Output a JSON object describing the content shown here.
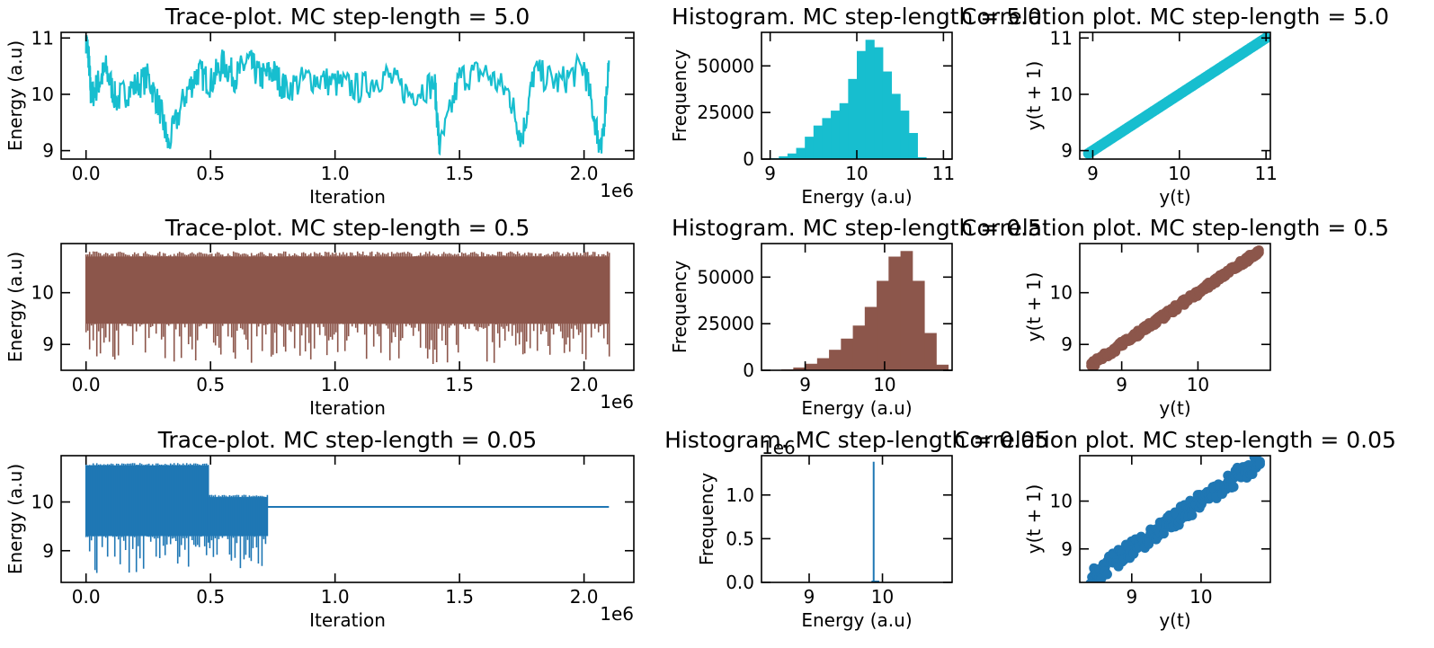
{
  "colors": {
    "row1": "#17becf",
    "row2": "#8c564b",
    "row3": "#1f77b4"
  },
  "chart_data": [
    {
      "type": "line",
      "title": "Trace-plot. MC step-length = 5.0",
      "xlabel": "Iteration",
      "ylabel": "Energy (a.u)",
      "x_offset_label": "1e6",
      "xlim": [
        -0.1,
        2.2
      ],
      "ylim": [
        8.85,
        11.1
      ],
      "x_ticks": [
        0.0,
        0.5,
        1.0,
        1.5,
        2.0
      ],
      "x_tick_labels": [
        "0.0",
        "0.5",
        "1.0",
        "1.5",
        "2.0"
      ],
      "y_ticks": [
        9,
        10,
        11
      ],
      "y_tick_labels": [
        "9",
        "10",
        "11"
      ],
      "color": "#17becf",
      "series": [
        {
          "x": [
            0.0,
            0.01,
            0.02,
            0.05,
            0.08,
            0.12,
            0.18,
            0.25,
            0.3,
            0.33,
            0.4,
            0.45,
            0.5,
            0.55,
            0.6,
            0.65,
            0.7,
            0.75,
            0.8,
            0.9,
            1.0,
            1.1,
            1.2,
            1.3,
            1.4,
            1.42,
            1.5,
            1.6,
            1.7,
            1.75,
            1.8,
            1.9,
            2.0,
            2.05,
            2.07,
            2.1
          ],
          "y": [
            11.0,
            10.7,
            9.95,
            10.2,
            10.45,
            9.9,
            10.1,
            10.3,
            9.7,
            9.1,
            10.0,
            10.4,
            10.2,
            10.55,
            10.3,
            10.6,
            10.3,
            10.4,
            10.1,
            10.3,
            10.2,
            10.1,
            10.35,
            10.0,
            10.2,
            9.0,
            10.3,
            10.4,
            10.0,
            9.2,
            10.4,
            10.2,
            10.5,
            9.4,
            8.95,
            10.6
          ]
        }
      ]
    },
    {
      "type": "bar",
      "title": "Histogram. MC step-length = 5.0",
      "xlabel": "Energy (a.u)",
      "ylabel": "Frequency",
      "xlim": [
        8.9,
        11.1
      ],
      "ylim": [
        0,
        68000
      ],
      "x_ticks": [
        9,
        10,
        11
      ],
      "x_tick_labels": [
        "9",
        "10",
        "11"
      ],
      "y_ticks": [
        0,
        25000,
        50000
      ],
      "y_tick_labels": [
        "0",
        "25000",
        "50000"
      ],
      "color": "#17becf",
      "bins": [
        9.0,
        9.1,
        9.2,
        9.3,
        9.4,
        9.5,
        9.6,
        9.7,
        9.8,
        9.9,
        10.0,
        10.1,
        10.2,
        10.3,
        10.4,
        10.5,
        10.6,
        10.7
      ],
      "values": [
        500,
        1500,
        3000,
        6000,
        12000,
        18000,
        22000,
        26000,
        30000,
        43000,
        58000,
        64000,
        60000,
        47000,
        35000,
        26000,
        14000,
        1000
      ]
    },
    {
      "type": "scatter",
      "title": "Correlation plot. MC step-length = 5.0",
      "xlabel": "y(t)",
      "ylabel": "y(t + 1)",
      "xlim": [
        8.85,
        11.05
      ],
      "ylim": [
        8.85,
        11.1
      ],
      "x_ticks": [
        9,
        10,
        11
      ],
      "x_tick_labels": [
        "9",
        "10",
        "11"
      ],
      "y_ticks": [
        9,
        10,
        11
      ],
      "y_tick_labels": [
        "9",
        "10",
        "11"
      ],
      "color": "#17becf",
      "x": [
        8.95,
        11.0
      ],
      "y": [
        8.95,
        11.0
      ]
    },
    {
      "type": "line",
      "title": "Trace-plot. MC step-length = 0.5",
      "xlabel": "Iteration",
      "ylabel": "Energy (a.u)",
      "x_offset_label": "1e6",
      "xlim": [
        -0.1,
        2.2
      ],
      "ylim": [
        8.5,
        10.95
      ],
      "x_ticks": [
        0.0,
        0.5,
        1.0,
        1.5,
        2.0
      ],
      "x_tick_labels": [
        "0.0",
        "0.5",
        "1.0",
        "1.5",
        "2.0"
      ],
      "y_ticks": [
        9,
        10
      ],
      "y_tick_labels": [
        "9",
        "10"
      ],
      "color": "#8c564b",
      "band": {
        "x_start": 0.0,
        "x_end": 2.1,
        "upper": 10.7,
        "lower": 9.4,
        "max": 10.8,
        "min": 8.6
      }
    },
    {
      "type": "bar",
      "title": "Histogram. MC step-length = 0.5",
      "xlabel": "Energy (a.u)",
      "ylabel": "Frequency",
      "xlim": [
        8.45,
        10.85
      ],
      "ylim": [
        0,
        68000
      ],
      "x_ticks": [
        9,
        10
      ],
      "x_tick_labels": [
        "9",
        "10"
      ],
      "y_ticks": [
        0,
        25000,
        50000
      ],
      "y_tick_labels": [
        "0",
        "25000",
        "50000"
      ],
      "color": "#8c564b",
      "bins": [
        8.7,
        8.85,
        9.0,
        9.15,
        9.3,
        9.45,
        9.6,
        9.75,
        9.9,
        10.05,
        10.2,
        10.35,
        10.5,
        10.65
      ],
      "values": [
        500,
        1500,
        3500,
        6500,
        11000,
        17000,
        24000,
        34000,
        48000,
        61000,
        64000,
        48000,
        20000,
        3000
      ]
    },
    {
      "type": "scatter",
      "title": "Correlation plot. MC step-length = 0.5",
      "xlabel": "y(t)",
      "ylabel": "y(t + 1)",
      "xlim": [
        8.45,
        10.95
      ],
      "ylim": [
        8.5,
        10.95
      ],
      "x_ticks": [
        9,
        10
      ],
      "x_tick_labels": [
        "9",
        "10"
      ],
      "y_ticks": [
        9,
        10
      ],
      "y_tick_labels": [
        "9",
        "10"
      ],
      "color": "#8c564b",
      "x": [
        8.6,
        10.8
      ],
      "y": [
        8.6,
        10.8
      ]
    },
    {
      "type": "line",
      "title": "Trace-plot. MC step-length = 0.05",
      "xlabel": "Iteration",
      "ylabel": "Energy (a.u)",
      "x_offset_label": "1e6",
      "xlim": [
        -0.1,
        2.2
      ],
      "ylim": [
        8.35,
        10.95
      ],
      "x_ticks": [
        0.0,
        0.5,
        1.0,
        1.5,
        2.0
      ],
      "x_tick_labels": [
        "0.0",
        "0.5",
        "1.0",
        "1.5",
        "2.0"
      ],
      "y_ticks": [
        9,
        10
      ],
      "y_tick_labels": [
        "9",
        "10"
      ],
      "color": "#1f77b4",
      "segments": [
        {
          "x_start": 0.0,
          "x_end": 0.49,
          "upper": 10.75,
          "lower": 9.3,
          "max": 10.8,
          "min": 8.5
        },
        {
          "x_start": 0.49,
          "x_end": 0.73,
          "upper": 10.1,
          "lower": 9.3,
          "max": 10.15,
          "min": 8.6
        }
      ],
      "flat": {
        "x_start": 0.73,
        "x_end": 2.1,
        "y": 9.9
      }
    },
    {
      "type": "bar",
      "title": "Histogram. MC step-length = 0.05",
      "xlabel": "Energy (a.u)",
      "ylabel": "Frequency",
      "y_offset_label": "1e6",
      "xlim": [
        8.35,
        10.95
      ],
      "ylim": [
        0,
        1.45
      ],
      "x_ticks": [
        9,
        10
      ],
      "x_tick_labels": [
        "9",
        "10"
      ],
      "y_ticks": [
        0.0,
        0.5,
        1.0
      ],
      "y_tick_labels": [
        "0.0",
        "0.5",
        "1.0"
      ],
      "color": "#1f77b4",
      "spike": {
        "x": 9.88,
        "value": 1.38
      },
      "bins": [
        9.85,
        9.9
      ],
      "values": [
        0.02,
        0.02
      ]
    },
    {
      "type": "scatter",
      "title": "Correlation plot. MC step-length = 0.05",
      "xlabel": "y(t)",
      "ylabel": "y(t + 1)",
      "xlim": [
        8.25,
        11.0
      ],
      "ylim": [
        8.3,
        10.95
      ],
      "x_ticks": [
        9,
        10
      ],
      "x_tick_labels": [
        "9",
        "10"
      ],
      "y_ticks": [
        9,
        10
      ],
      "y_tick_labels": [
        "9",
        "10"
      ],
      "color": "#1f77b4",
      "x": [
        8.4,
        10.85
      ],
      "y": [
        8.4,
        10.85
      ]
    }
  ]
}
